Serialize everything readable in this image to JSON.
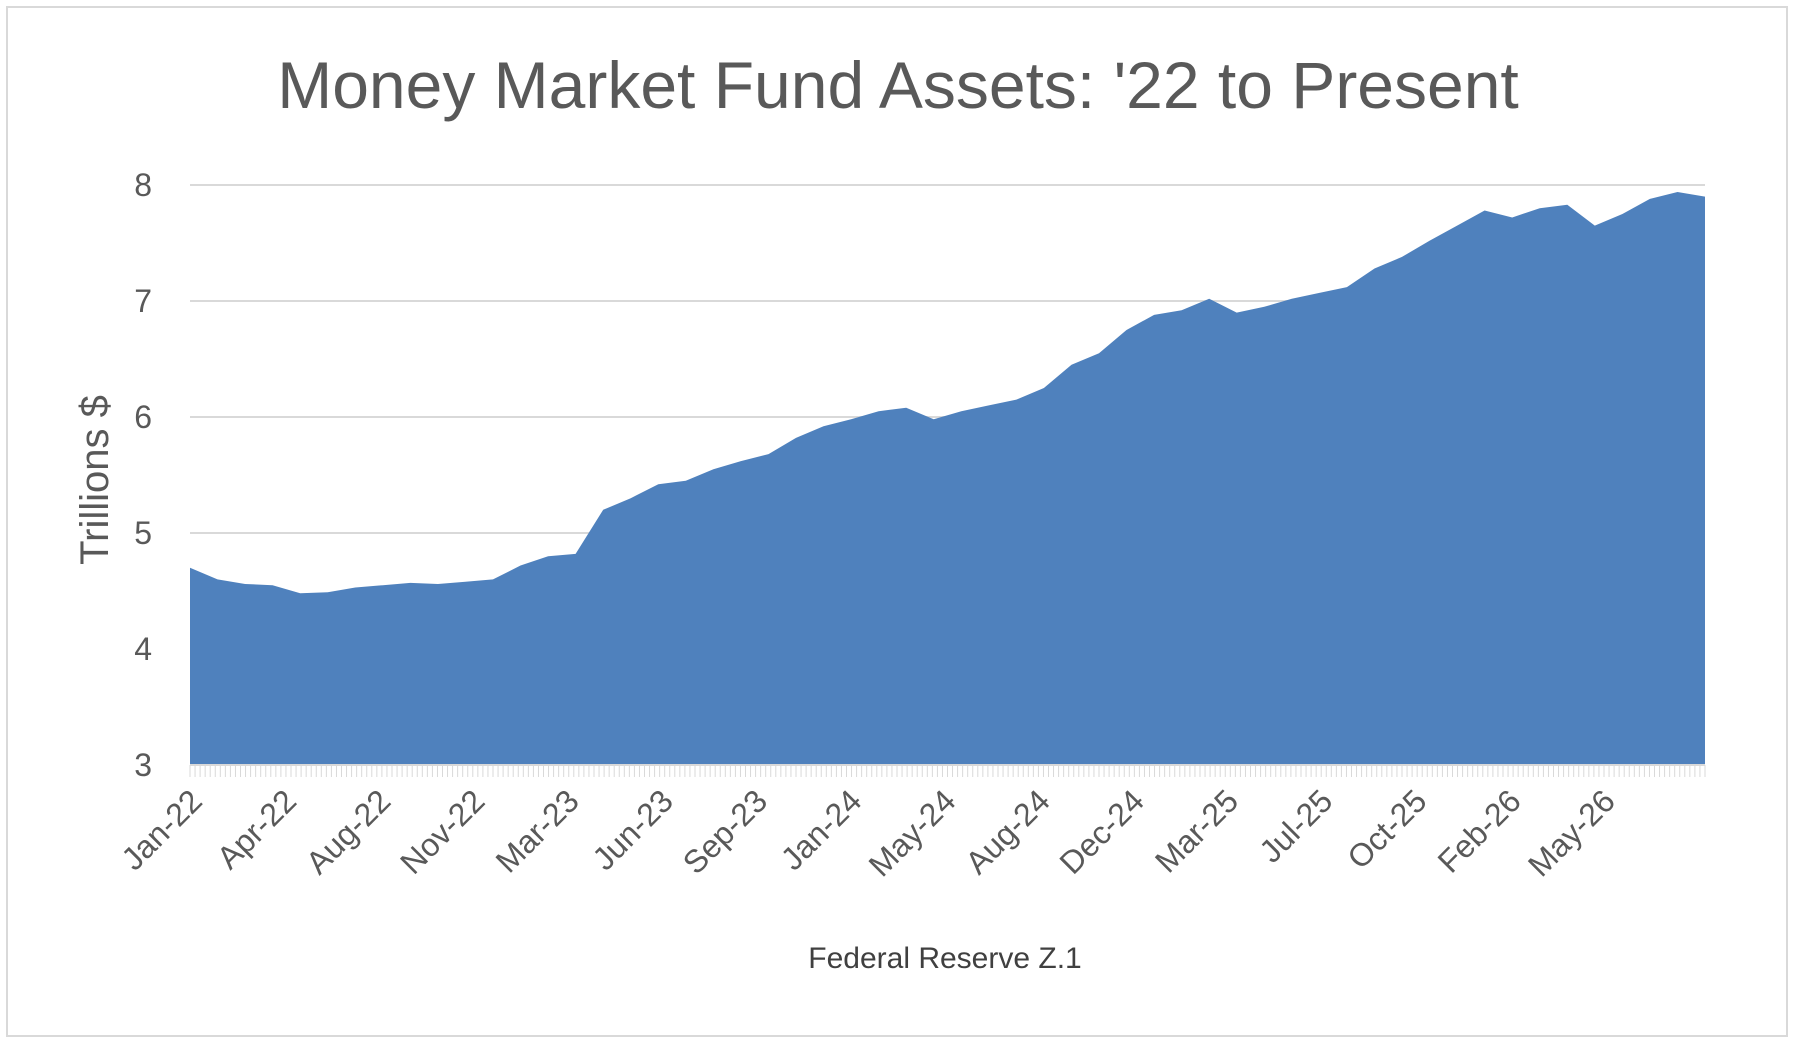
{
  "chart_data": {
    "type": "area",
    "title": "Money Market Fund Assets: '22 to Present",
    "xlabel": "Federal Reserve Z.1",
    "ylabel": "Trillions $",
    "ylim": [
      3,
      8
    ],
    "yticks": [
      3,
      4,
      5,
      6,
      7,
      8
    ],
    "xtick_labels": [
      "Jan-22",
      "Apr-22",
      "Aug-22",
      "Nov-22",
      "Mar-23",
      "Jun-23",
      "Sep-23",
      "Jan-24",
      "May-24",
      "Aug-24",
      "Dec-24",
      "Mar-25",
      "Jul-25",
      "Oct-25",
      "Feb-26",
      "May-26"
    ],
    "grid": true,
    "legend": "none",
    "color": "#4f81bd",
    "series": [
      {
        "x": [
          "2022-01",
          "2022-02",
          "2022-03",
          "2022-04",
          "2022-05",
          "2022-06",
          "2022-07",
          "2022-08",
          "2022-09",
          "2022-10",
          "2022-11",
          "2022-12",
          "2023-01",
          "2023-02",
          "2023-03",
          "2023-04",
          "2023-05",
          "2023-06",
          "2023-07",
          "2023-08",
          "2023-09",
          "2023-10",
          "2023-11",
          "2023-12",
          "2024-01",
          "2024-02",
          "2024-03",
          "2024-04",
          "2024-05",
          "2024-06",
          "2024-07",
          "2024-08",
          "2024-09",
          "2024-10",
          "2024-11",
          "2024-12",
          "2025-01",
          "2025-02",
          "2025-03",
          "2025-04",
          "2025-05",
          "2025-06",
          "2025-07",
          "2025-08",
          "2025-09",
          "2025-10",
          "2025-11",
          "2025-12",
          "2026-01",
          "2026-02",
          "2026-03",
          "2026-04",
          "2026-05",
          "2026-06",
          "2026-07",
          "2026-08"
        ],
        "values": [
          4.7,
          4.6,
          4.56,
          4.55,
          4.48,
          4.49,
          4.53,
          4.55,
          4.57,
          4.56,
          4.58,
          4.6,
          4.72,
          4.8,
          4.82,
          5.2,
          5.3,
          5.42,
          5.45,
          5.55,
          5.62,
          5.68,
          5.82,
          5.92,
          5.98,
          6.05,
          6.08,
          5.98,
          6.05,
          6.1,
          6.15,
          6.25,
          6.45,
          6.55,
          6.75,
          6.88,
          6.92,
          7.02,
          6.9,
          6.95,
          7.02,
          7.07,
          7.12,
          7.28,
          7.38,
          7.52,
          7.65,
          7.78,
          7.72,
          7.8,
          7.83,
          7.65,
          7.75,
          7.88,
          7.94,
          7.9
        ]
      }
    ]
  }
}
